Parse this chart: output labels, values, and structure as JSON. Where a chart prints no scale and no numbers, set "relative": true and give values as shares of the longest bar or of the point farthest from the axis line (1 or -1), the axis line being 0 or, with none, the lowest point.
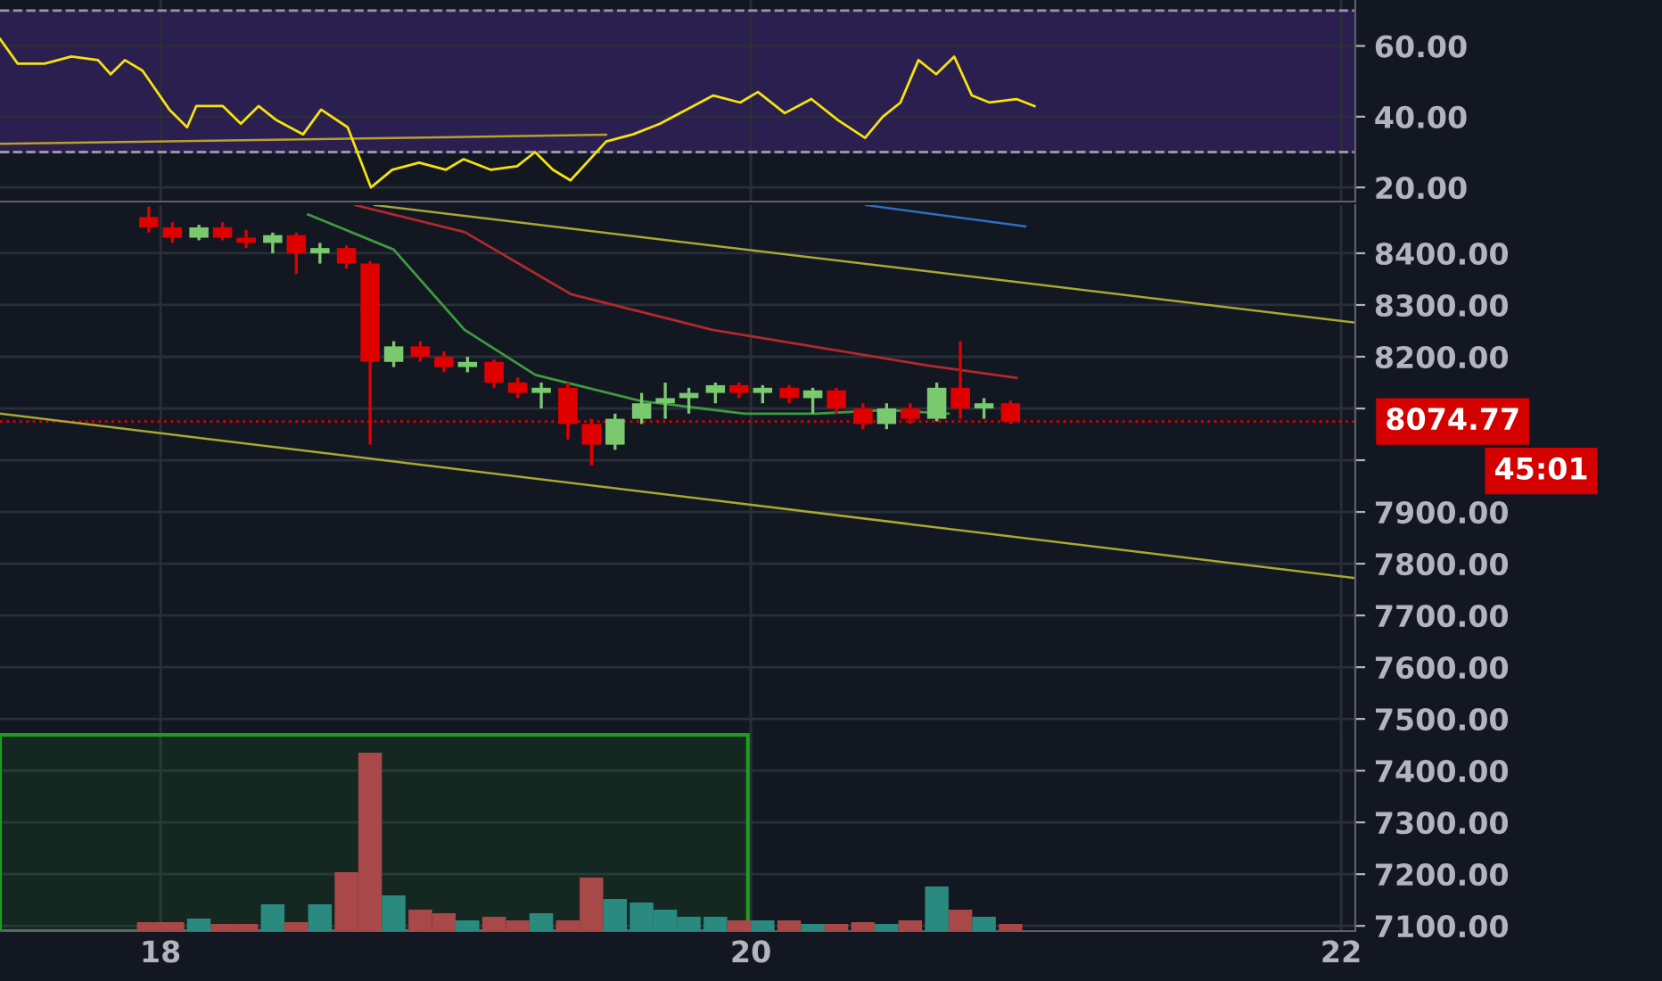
{
  "chart_data": [
    {
      "type": "line",
      "xlim": [
        17.456,
        22.048
      ],
      "xticks": [
        18,
        20,
        22
      ],
      "ylim": [
        16,
        73
      ],
      "yticks": [
        {
          "value": 20,
          "label": "20.00"
        },
        {
          "value": 40,
          "label": "40.00"
        },
        {
          "value": 60,
          "label": "60.00"
        }
      ],
      "tick_labels": "y",
      "grid": true,
      "bands": [
        {
          "axis": "y",
          "from": 30,
          "to": 70,
          "color": "#2a1f4f"
        }
      ],
      "ref_lines": [
        {
          "axis": "y",
          "value": 30,
          "color": "#9598a1",
          "line_style": "dashed"
        },
        {
          "axis": "y",
          "value": 70,
          "color": "#9598a1",
          "line_style": "dashed"
        }
      ],
      "series": [
        {
          "color": "#f5e20e",
          "x": [
            17.456,
            17.516,
            17.607,
            17.698,
            17.788,
            17.831,
            17.879,
            17.939,
            18.03,
            18.09,
            18.121,
            18.211,
            18.272,
            18.332,
            18.393,
            18.483,
            18.544,
            18.634,
            18.713,
            18.785,
            18.876,
            18.967,
            19.027,
            19.118,
            19.208,
            19.269,
            19.329,
            19.389,
            19.51,
            19.601,
            19.692,
            19.782,
            19.873,
            19.964,
            20.024,
            20.115,
            20.205,
            20.296,
            20.387,
            20.447,
            20.507,
            20.568,
            20.628,
            20.689,
            20.749,
            20.809,
            20.9,
            20.961
          ],
          "values": [
            62,
            55,
            55,
            57,
            56,
            52,
            56,
            53,
            42,
            37,
            43,
            43,
            38,
            43,
            39,
            35,
            42,
            37,
            20,
            25,
            27,
            25,
            28,
            25,
            26,
            30,
            25,
            22,
            33,
            35,
            38,
            42,
            46,
            44,
            47,
            41,
            45,
            39,
            34,
            40,
            44,
            56,
            52,
            57,
            46,
            44,
            45,
            43
          ]
        },
        {
          "type": "line",
          "color": "#b8a030",
          "x": [
            17.456,
            19.51
          ],
          "values": [
            32.3,
            34.9
          ]
        }
      ]
    },
    {
      "type": "candlestick",
      "xlim": [
        17.456,
        22.048
      ],
      "xticks": [
        18,
        20,
        22
      ],
      "ylim": [
        7090,
        8493
      ],
      "yticks": [
        {
          "value": 7100,
          "label": "7100.00"
        },
        {
          "value": 7200,
          "label": "7200.00"
        },
        {
          "value": 7300,
          "label": "7300.00"
        },
        {
          "value": 7400,
          "label": "7400.00"
        },
        {
          "value": 7500,
          "label": "7500.00"
        },
        {
          "value": 7600,
          "label": "7600.00"
        },
        {
          "value": 7700,
          "label": "7700.00"
        },
        {
          "value": 7800,
          "label": "7800.00"
        },
        {
          "value": 7900,
          "label": "7900.00"
        },
        {
          "value": 8000,
          "label": null
        },
        {
          "value": 8100,
          "label": null
        },
        {
          "value": 8200,
          "label": "8200.00"
        },
        {
          "value": 8300,
          "label": "8300.00"
        },
        {
          "value": 8400,
          "label": "8400.00"
        }
      ],
      "tick_labels": "y",
      "grid": true,
      "x": [
        17.96,
        18.04,
        18.13,
        18.21,
        18.29,
        18.38,
        18.46,
        18.54,
        18.63,
        18.71,
        18.79,
        18.88,
        18.96,
        19.04,
        19.13,
        19.21,
        19.29,
        19.38,
        19.46,
        19.54,
        19.63,
        19.71,
        19.79,
        19.88,
        19.96,
        20.04,
        20.13,
        20.21,
        20.29,
        20.38,
        20.46,
        20.54,
        20.63,
        20.71,
        20.79,
        20.88
      ],
      "ohlc": [
        [
          8470,
          8490,
          8440,
          8450
        ],
        [
          8450,
          8460,
          8420,
          8430
        ],
        [
          8430,
          8455,
          8425,
          8450
        ],
        [
          8450,
          8460,
          8425,
          8430
        ],
        [
          8430,
          8445,
          8410,
          8420
        ],
        [
          8420,
          8440,
          8400,
          8435
        ],
        [
          8435,
          8440,
          8360,
          8400
        ],
        [
          8400,
          8420,
          8380,
          8410
        ],
        [
          8410,
          8415,
          8370,
          8380
        ],
        [
          8380,
          8385,
          8030,
          8190
        ],
        [
          8190,
          8230,
          8180,
          8220
        ],
        [
          8220,
          8230,
          8190,
          8200
        ],
        [
          8200,
          8210,
          8170,
          8180
        ],
        [
          8180,
          8200,
          8170,
          8190
        ],
        [
          8190,
          8195,
          8140,
          8150
        ],
        [
          8150,
          8160,
          8120,
          8130
        ],
        [
          8130,
          8150,
          8100,
          8140
        ],
        [
          8140,
          8150,
          8040,
          8070
        ],
        [
          8070,
          8080,
          7990,
          8030
        ],
        [
          8030,
          8090,
          8020,
          8080
        ],
        [
          8080,
          8130,
          8070,
          8110
        ],
        [
          8110,
          8150,
          8080,
          8120
        ],
        [
          8120,
          8140,
          8090,
          8130
        ],
        [
          8130,
          8150,
          8110,
          8145
        ],
        [
          8145,
          8150,
          8120,
          8130
        ],
        [
          8130,
          8145,
          8110,
          8140
        ],
        [
          8140,
          8145,
          8110,
          8120
        ],
        [
          8120,
          8140,
          8090,
          8135
        ],
        [
          8135,
          8140,
          8090,
          8100
        ],
        [
          8100,
          8110,
          8060,
          8070
        ],
        [
          8070,
          8110,
          8060,
          8100
        ],
        [
          8100,
          8110,
          8070,
          8080
        ],
        [
          8080,
          8150,
          8075,
          8140
        ],
        [
          8140,
          8230,
          8080,
          8100
        ],
        [
          8100,
          8120,
          8080,
          8110
        ],
        [
          8110,
          8115,
          8070,
          8075
        ]
      ],
      "colors": [
        "#e00000",
        "#e00000",
        "#7bc96f",
        "#e00000",
        "#e00000",
        "#7bc96f",
        "#e00000",
        "#7bc96f",
        "#e00000",
        "#e00000",
        "#7bc96f",
        "#e00000",
        "#e00000",
        "#7bc96f",
        "#e00000",
        "#e00000",
        "#7bc96f",
        "#e00000",
        "#e00000",
        "#7bc96f",
        "#7bc96f",
        "#7bc96f",
        "#7bc96f",
        "#7bc96f",
        "#e00000",
        "#7bc96f",
        "#e00000",
        "#7bc96f",
        "#e00000",
        "#e00000",
        "#7bc96f",
        "#e00000",
        "#7bc96f",
        "#e00000",
        "#7bc96f",
        "#e00000"
      ],
      "series": [
        {
          "type": "line",
          "color": "#3d9b3d",
          "x": [
            18.5,
            18.79,
            19.03,
            19.27,
            19.63,
            19.98,
            20.22,
            20.46,
            20.67
          ],
          "values": [
            8475,
            8407,
            8252,
            8165,
            8114,
            8090,
            8090,
            8097,
            8090
          ]
        },
        {
          "type": "line",
          "color": "#b02a2a",
          "x": [
            18.66,
            19.03,
            19.39,
            19.87,
            20.24,
            20.6,
            20.9
          ],
          "values": [
            8493,
            8441,
            8321,
            8252,
            8217,
            8183,
            8159
          ]
        },
        {
          "type": "line",
          "color": "#2f6fc0",
          "x": [
            20.39,
            20.93
          ],
          "values": [
            8493,
            8452
          ]
        },
        {
          "type": "line",
          "color": "#a8a832",
          "x": [
            18.725,
            22.048
          ],
          "values": [
            8493,
            8266
          ]
        },
        {
          "type": "line",
          "color": "#a8a832",
          "x": [
            17.456,
            22.048
          ],
          "values": [
            8090,
            7772
          ]
        }
      ],
      "ref_lines": [
        {
          "axis": "y",
          "value": 8074.77,
          "label": "8074.77",
          "color": "#e00000",
          "line_style": "dotted"
        }
      ],
      "annotations": [
        "45:01"
      ]
    },
    {
      "type": "bar",
      "relative": true,
      "xlim": [
        17.456,
        22.048
      ],
      "xticks": [
        18,
        20,
        22
      ],
      "tick_labels": "x",
      "grid": "x",
      "x": [
        17.96,
        18.04,
        18.13,
        18.21,
        18.29,
        18.38,
        18.46,
        18.54,
        18.63,
        18.71,
        18.79,
        18.88,
        18.96,
        19.04,
        19.13,
        19.21,
        19.29,
        19.38,
        19.46,
        19.54,
        19.63,
        19.71,
        19.79,
        19.88,
        19.96,
        20.04,
        20.13,
        20.21,
        20.29,
        20.38,
        20.46,
        20.54,
        20.63,
        20.71,
        20.79,
        20.88
      ],
      "values": [
        0.05,
        0.05,
        0.07,
        0.04,
        0.04,
        0.15,
        0.05,
        0.15,
        0.33,
        1,
        0.2,
        0.12,
        0.1,
        0.06,
        0.08,
        0.06,
        0.1,
        0.06,
        0.3,
        0.18,
        0.16,
        0.12,
        0.08,
        0.08,
        0.06,
        0.06,
        0.06,
        0.04,
        0.04,
        0.05,
        0.04,
        0.06,
        0.25,
        0.12,
        0.08,
        0.04
      ],
      "colors": [
        "#a84848",
        "#a84848",
        "#2a8a80",
        "#a84848",
        "#a84848",
        "#2a8a80",
        "#a84848",
        "#2a8a80",
        "#a84848",
        "#a84848",
        "#2a8a80",
        "#a84848",
        "#a84848",
        "#2a8a80",
        "#a84848",
        "#a84848",
        "#2a8a80",
        "#a84848",
        "#a84848",
        "#2a8a80",
        "#2a8a80",
        "#2a8a80",
        "#2a8a80",
        "#2a8a80",
        "#a84848",
        "#2a8a80",
        "#a84848",
        "#2a8a80",
        "#a84848",
        "#a84848",
        "#2a8a80",
        "#a84848",
        "#2a8a80",
        "#a84848",
        "#2a8a80",
        "#a84848"
      ],
      "bands": [
        {
          "axis": "x",
          "from": 17.456,
          "to": 19.99,
          "color": "#1e9e1e"
        }
      ]
    }
  ]
}
